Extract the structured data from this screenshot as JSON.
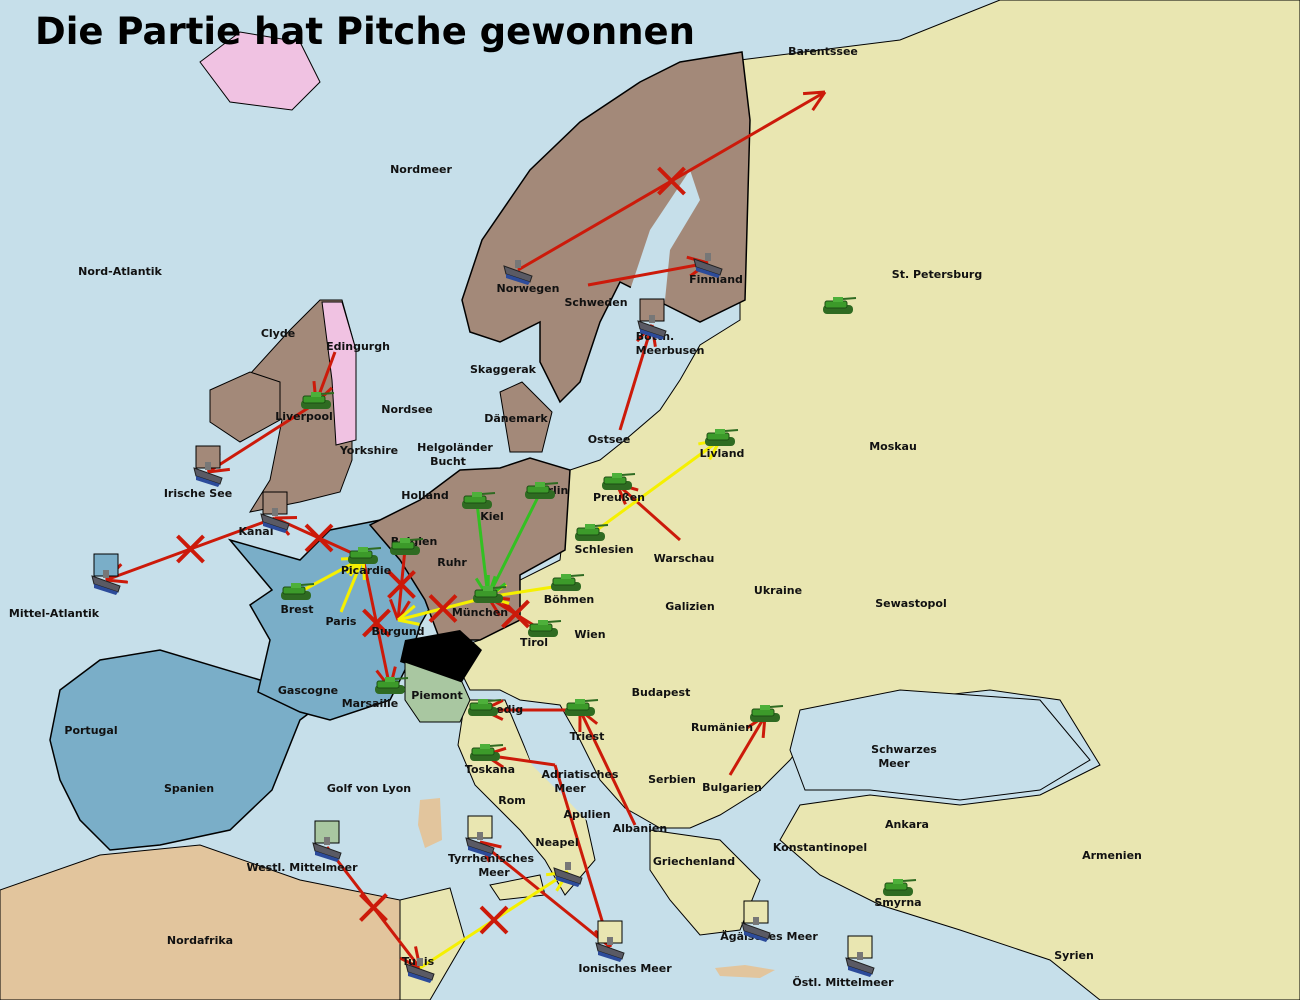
{
  "title": "Die Partie hat Pitche gewonnen",
  "colors": {
    "sea": "#c6dfea",
    "neutral_land": "#e9e6b1",
    "brown_power": "#a38979",
    "blue_power": "#7aaec8",
    "pink_power": "#f0c2e2",
    "green_power": "#a9c7a1",
    "black_power": "#000000",
    "africa": "#e2c59d",
    "move": "#cc1a0a",
    "support": "#f5f000",
    "support_green": "#33c022",
    "army": "#3c9a2a",
    "fleet": "#5a5a64"
  },
  "labels": [
    "Barentssee",
    "Nordmeer",
    "Nord-Atlantik",
    "Norwegen",
    "Schweden",
    "Finnland",
    "St. Petersburg",
    "Clyde",
    "Edingurgh",
    "Bottn.",
    "Meerbusen",
    "Skaggerak",
    "Liverpool",
    "Nordsee",
    "Dänemark",
    "Ostsee",
    "Moskau",
    "Livland",
    "Yorkshire",
    "Helgoländer",
    "Bucht",
    "Irische See",
    "Holland",
    "Berlin",
    "Preußen",
    "Kiel",
    "Kanal",
    "Belgien",
    "Schlesien",
    "Warschau",
    "Ruhr",
    "Picardie",
    "Ukraine",
    "Böhmen",
    "Galizien",
    "Sewastopol",
    "Mittel-Atlantik",
    "Brest",
    "München",
    "Paris",
    "Burgund",
    "Tirol",
    "Wien",
    "Gascogne",
    "Piemont",
    "Budapest",
    "Marsaille",
    "Venedig",
    "Portugal",
    "Rumänien",
    "Triest",
    "Schwarzes",
    "Meer",
    "Toskana",
    "Adriatisches",
    "Meer",
    "Serbien",
    "Spanien",
    "Golf von Lyon",
    "Bulgarien",
    "Rom",
    "Apulien",
    "Ankara",
    "Albanien",
    "Neapel",
    "Konstantinopel",
    "Armenien",
    "Griechenland",
    "Tyrrhenisches",
    "Meer",
    "Westl. Mittelmeer",
    "Smyrna",
    "Nordafrika",
    "Ägäisches Meer",
    "Tunis",
    "Ionisches Meer",
    "Syrien",
    "Östl. Mittelmeer"
  ],
  "units": [
    {
      "type": "army",
      "province": "Livland"
    },
    {
      "type": "army",
      "province": "St. Petersburg"
    },
    {
      "type": "army",
      "province": "Preußen"
    },
    {
      "type": "army",
      "province": "Schlesien"
    },
    {
      "type": "army",
      "province": "Kiel"
    },
    {
      "type": "army",
      "province": "Berlin"
    },
    {
      "type": "army",
      "province": "Belgien"
    },
    {
      "type": "army",
      "province": "Picardie"
    },
    {
      "type": "army",
      "province": "Brest"
    },
    {
      "type": "army",
      "province": "Böhmen"
    },
    {
      "type": "army",
      "province": "München"
    },
    {
      "type": "army",
      "province": "Tirol"
    },
    {
      "type": "army",
      "province": "Marsaille"
    },
    {
      "type": "army",
      "province": "Venedig"
    },
    {
      "type": "army",
      "province": "Triest"
    },
    {
      "type": "army",
      "province": "Rumänien"
    },
    {
      "type": "army",
      "province": "Toskana"
    },
    {
      "type": "army",
      "province": "Smyrna"
    },
    {
      "type": "army",
      "province": "Liverpool"
    },
    {
      "type": "fleet",
      "province": "Norwegen"
    },
    {
      "type": "fleet",
      "province": "Finnland"
    },
    {
      "type": "fleet",
      "province": "Bottn. Meerbusen",
      "dislodged_color": "#a38979"
    },
    {
      "type": "fleet",
      "province": "Irische See",
      "dislodged_color": "#a38979"
    },
    {
      "type": "fleet",
      "province": "Kanal",
      "dislodged_color": "#a38979"
    },
    {
      "type": "fleet",
      "province": "Mittel-Atlantik",
      "dislodged_color": "#7aaec8"
    },
    {
      "type": "fleet",
      "province": "Westl. Mittelmeer",
      "dislodged_color": "#a9c7a1"
    },
    {
      "type": "fleet",
      "province": "Tyrrhenisches Meer",
      "dislodged_color": "#e9e6b1"
    },
    {
      "type": "fleet",
      "province": "Neapel"
    },
    {
      "type": "fleet",
      "province": "Ionisches Meer",
      "dislodged_color": "#e9e6b1"
    },
    {
      "type": "fleet",
      "province": "Ägäisches Meer",
      "dislodged_color": "#e9e6b1"
    },
    {
      "type": "fleet",
      "province": "Östl. Mittelmeer",
      "dislodged_color": "#e9e6b1"
    },
    {
      "type": "fleet",
      "province": "Tunis"
    }
  ],
  "orders": [
    {
      "kind": "move",
      "from": "Norwegen",
      "to": "Barentssee",
      "failed": true
    },
    {
      "kind": "move",
      "from": "Schweden",
      "to": "Finnland",
      "failed": false
    },
    {
      "kind": "move",
      "from": "Ostsee",
      "to": "Bottn. Meerbusen",
      "failed": false
    },
    {
      "kind": "move",
      "from": "Edingurgh",
      "to": "Liverpool",
      "failed": false
    },
    {
      "kind": "move",
      "from": "Liverpool",
      "to": "Irische See",
      "failed": false
    },
    {
      "kind": "move",
      "from": "Kanal",
      "to": "Mittel-Atlantik",
      "failed": true
    },
    {
      "kind": "move",
      "from": "Picardie",
      "to": "Kanal",
      "failed": true
    },
    {
      "kind": "move",
      "from": "Belgien",
      "to": "Burgund",
      "failed": true
    },
    {
      "kind": "move",
      "from": "Picardie",
      "to": "Marsaille",
      "failed": true
    },
    {
      "kind": "move",
      "from": "Tirol",
      "to": "München",
      "failed": true
    },
    {
      "kind": "move",
      "from": "Triest",
      "to": "Venedig",
      "failed": false
    },
    {
      "kind": "move",
      "from": "Apulien",
      "to": "Toskana",
      "failed": false
    },
    {
      "kind": "move",
      "from": "Albanien",
      "to": "Triest",
      "failed": false
    },
    {
      "kind": "move",
      "from": "Adriatisches Meer",
      "to": "Ionisches Meer",
      "failed": false
    },
    {
      "kind": "move",
      "from": "Ionisches Meer",
      "to": "Tyrrhenisches Meer",
      "failed": false
    },
    {
      "kind": "move",
      "from": "Westl. Mittelmeer",
      "to": "Tunis",
      "failed": true
    },
    {
      "kind": "move",
      "from": "Bulgarien",
      "to": "Rumänien",
      "failed": false
    },
    {
      "kind": "move",
      "from": "Warschau",
      "to": "Preußen",
      "failed": false
    },
    {
      "kind": "support",
      "from": "Tunis",
      "to": "Neapel",
      "failed": true
    },
    {
      "kind": "support",
      "from": "Schlesien",
      "to": "Livland",
      "failed": false
    },
    {
      "kind": "support",
      "from": "Böhmen",
      "to": "München",
      "failed": false
    },
    {
      "kind": "support",
      "from": "Paris",
      "to": "Picardie",
      "failed": false
    },
    {
      "kind": "support",
      "from": "Brest",
      "to": "Picardie",
      "failed": false
    },
    {
      "kind": "support",
      "from": "München",
      "to": "Burgund",
      "failed": true
    },
    {
      "kind": "support_green",
      "from": "Berlin",
      "to": "München",
      "failed": false
    },
    {
      "kind": "support_green",
      "from": "Kiel",
      "to": "München",
      "failed": false
    }
  ]
}
